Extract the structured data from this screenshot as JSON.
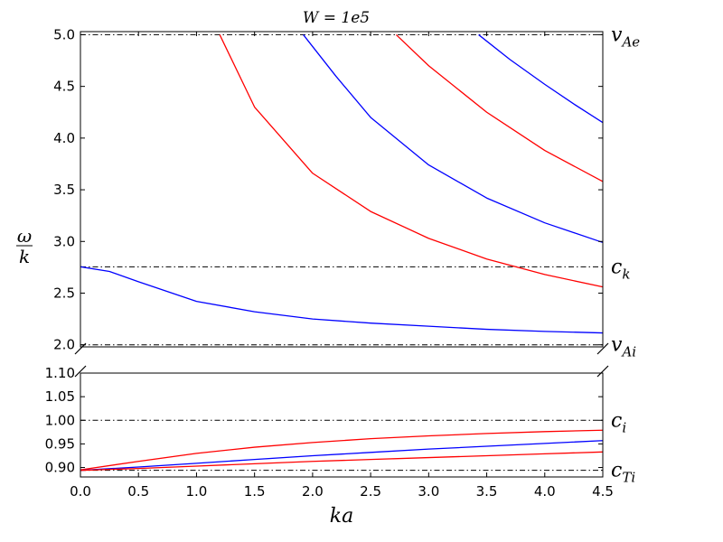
{
  "chart_data": {
    "type": "line",
    "title": "W = 1e5",
    "xlabel": "ka",
    "ylabel": "ω / k",
    "broken_y_axis": true,
    "xlim": [
      0.0,
      4.5
    ],
    "x_ticks": [
      "0.0",
      "0.5",
      "1.0",
      "1.5",
      "2.0",
      "2.5",
      "3.0",
      "3.5",
      "4.0",
      "4.5"
    ],
    "upper_panel": {
      "ylim": [
        1.98,
        5.03
      ],
      "y_ticks": [
        "2.0",
        "2.5",
        "3.0",
        "3.5",
        "4.0",
        "4.5",
        "5.0"
      ]
    },
    "lower_panel": {
      "ylim": [
        0.88,
        1.1
      ],
      "y_ticks": [
        "0.90",
        "0.95",
        "1.00",
        "1.05",
        "1.10"
      ]
    },
    "reference_lines": [
      {
        "name": "v_Ae",
        "value": 5.0,
        "panel": "upper",
        "label_main": "v",
        "label_sub": "Ae"
      },
      {
        "name": "c_k",
        "value": 2.755,
        "panel": "upper",
        "label_main": "c",
        "label_sub": "k"
      },
      {
        "name": "v_Ai",
        "value": 2.0,
        "panel": "upper",
        "label_main": "v",
        "label_sub": "Ai"
      },
      {
        "name": "c_i",
        "value": 1.0,
        "panel": "lower",
        "label_main": "c",
        "label_sub": "i"
      },
      {
        "name": "c_Ti",
        "value": 0.894,
        "panel": "lower",
        "label_main": "c",
        "label_sub": "Ti"
      }
    ],
    "series": [
      {
        "color": "#ff0000",
        "panel": "upper",
        "x": [
          1.2,
          1.5,
          2.0,
          2.5,
          3.0,
          3.5,
          4.0,
          4.5
        ],
        "y": [
          5.0,
          4.3,
          3.66,
          3.29,
          3.03,
          2.83,
          2.68,
          2.56
        ]
      },
      {
        "color": "#0000ff",
        "panel": "upper",
        "x": [
          1.92,
          2.2,
          2.5,
          3.0,
          3.5,
          4.0,
          4.5
        ],
        "y": [
          5.0,
          4.6,
          4.2,
          3.74,
          3.42,
          3.18,
          2.99
        ]
      },
      {
        "color": "#ff0000",
        "panel": "upper",
        "x": [
          2.72,
          3.0,
          3.5,
          4.0,
          4.5
        ],
        "y": [
          5.0,
          4.7,
          4.25,
          3.88,
          3.58
        ]
      },
      {
        "color": "#0000ff",
        "panel": "upper",
        "x": [
          3.43,
          3.7,
          4.0,
          4.25,
          4.5
        ],
        "y": [
          5.0,
          4.76,
          4.52,
          4.33,
          4.15
        ]
      },
      {
        "color": "#0000ff",
        "panel": "upper",
        "x": [
          0.0,
          0.25,
          0.5,
          1.0,
          1.5,
          2.0,
          2.5,
          3.0,
          3.5,
          4.0,
          4.5
        ],
        "y": [
          2.755,
          2.71,
          2.61,
          2.42,
          2.32,
          2.25,
          2.21,
          2.18,
          2.15,
          2.13,
          2.115
        ]
      },
      {
        "color": "#ff0000",
        "panel": "lower",
        "x": [
          0.0,
          0.5,
          1.0,
          1.5,
          2.0,
          2.5,
          3.0,
          3.5,
          4.0,
          4.5
        ],
        "y": [
          0.895,
          0.913,
          0.93,
          0.943,
          0.953,
          0.961,
          0.967,
          0.972,
          0.976,
          0.979
        ]
      },
      {
        "color": "#0000ff",
        "panel": "lower",
        "x": [
          0.0,
          0.5,
          1.0,
          1.5,
          2.0,
          2.5,
          3.0,
          3.5,
          4.0,
          4.5
        ],
        "y": [
          0.894,
          0.901,
          0.909,
          0.917,
          0.925,
          0.932,
          0.939,
          0.945,
          0.951,
          0.957
        ]
      },
      {
        "color": "#ff0000",
        "panel": "lower",
        "x": [
          0.0,
          0.5,
          1.0,
          1.5,
          2.0,
          2.5,
          3.0,
          3.5,
          4.0,
          4.5
        ],
        "y": [
          0.894,
          0.898,
          0.903,
          0.908,
          0.913,
          0.917,
          0.921,
          0.925,
          0.929,
          0.933
        ]
      }
    ]
  }
}
